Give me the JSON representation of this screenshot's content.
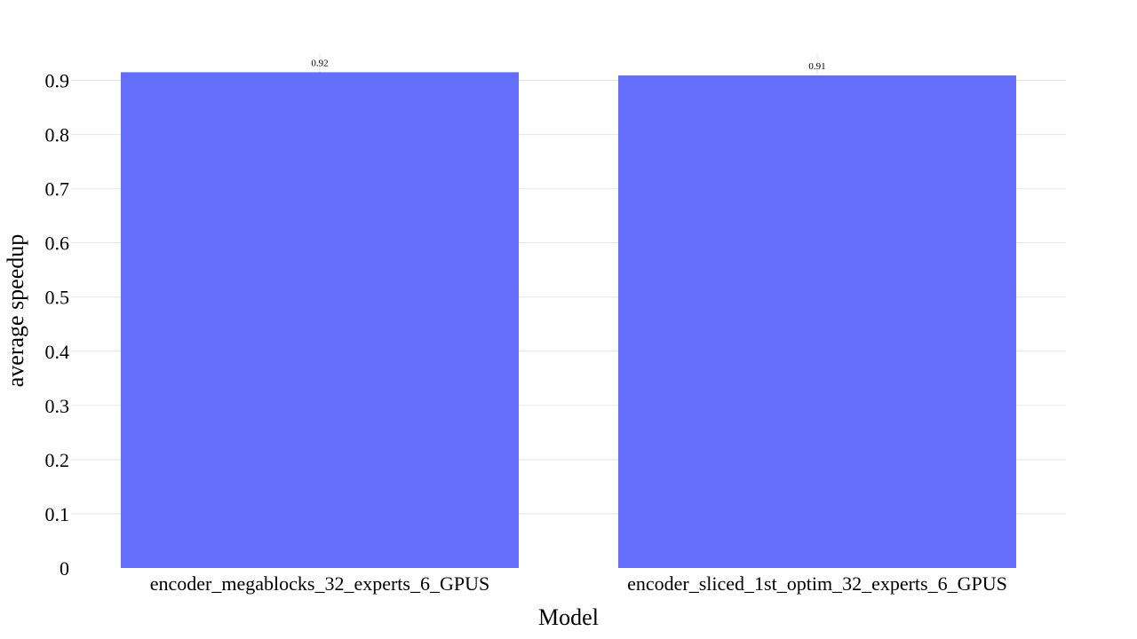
{
  "chart_data": {
    "type": "bar",
    "categories": [
      "encoder_megablocks_32_experts_6_GPUS",
      "encoder_sliced_1st_optim_32_experts_6_GPUS"
    ],
    "values": [
      0.915,
      0.909
    ],
    "data_labels": [
      "0.92",
      "0.91"
    ],
    "xlabel": "Model",
    "ylabel": "average speedup",
    "ylim": [
      0,
      0.95
    ],
    "yticks": [
      0,
      0.1,
      0.2,
      0.3,
      0.4,
      0.5,
      0.6,
      0.7,
      0.8,
      0.9
    ],
    "ytick_labels": [
      "0",
      "0.1",
      "0.2",
      "0.3",
      "0.4",
      "0.5",
      "0.6",
      "0.7",
      "0.8",
      "0.9"
    ],
    "grid": true,
    "bar_color": "#636efa"
  }
}
